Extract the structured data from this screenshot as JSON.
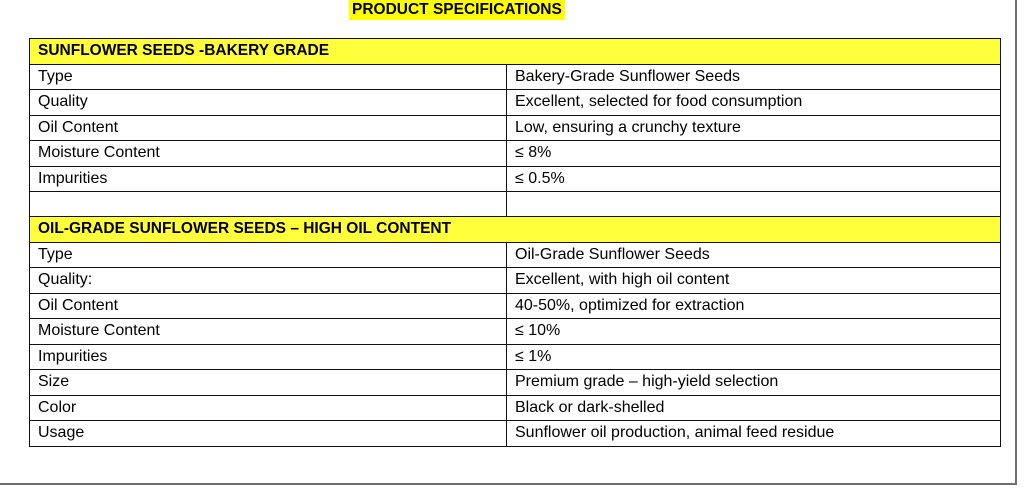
{
  "title": "PRODUCT SPECIFICATIONS",
  "sections": [
    {
      "heading": "SUNFLOWER SEEDS -BAKERY GRADE",
      "rows": [
        {
          "label": "Type",
          "value": "Bakery-Grade Sunflower Seeds"
        },
        {
          "label": "Quality",
          "value": "Excellent, selected for food consumption"
        },
        {
          "label": "Oil Content",
          "value": "Low, ensuring a crunchy texture"
        },
        {
          "label": "Moisture Content",
          "value": "≤ 8%"
        },
        {
          "label": "Impurities",
          "value": "≤ 0.5%"
        }
      ]
    },
    {
      "heading": "OIL-GRADE SUNFLOWER SEEDS – HIGH OIL CONTENT",
      "rows": [
        {
          "label": "Type",
          "value": "Oil-Grade Sunflower Seeds"
        },
        {
          "label": "Quality:",
          "value": "Excellent, with high oil content"
        },
        {
          "label": "Oil Content",
          "value": "40-50%, optimized for extraction"
        },
        {
          "label": "Moisture Content",
          "value": "≤ 10%"
        },
        {
          "label": "Impurities",
          "value": "≤ 1%"
        },
        {
          "label": "Size",
          "value": "Premium grade – high-yield selection"
        },
        {
          "label": "Color",
          "value": "Black or dark-shelled"
        },
        {
          "label": "Usage",
          "value": "Sunflower oil production, animal feed residue"
        }
      ]
    }
  ],
  "colors": {
    "highlight": "#ffff00",
    "section_header": "#ffff3c",
    "border": "#111111"
  }
}
